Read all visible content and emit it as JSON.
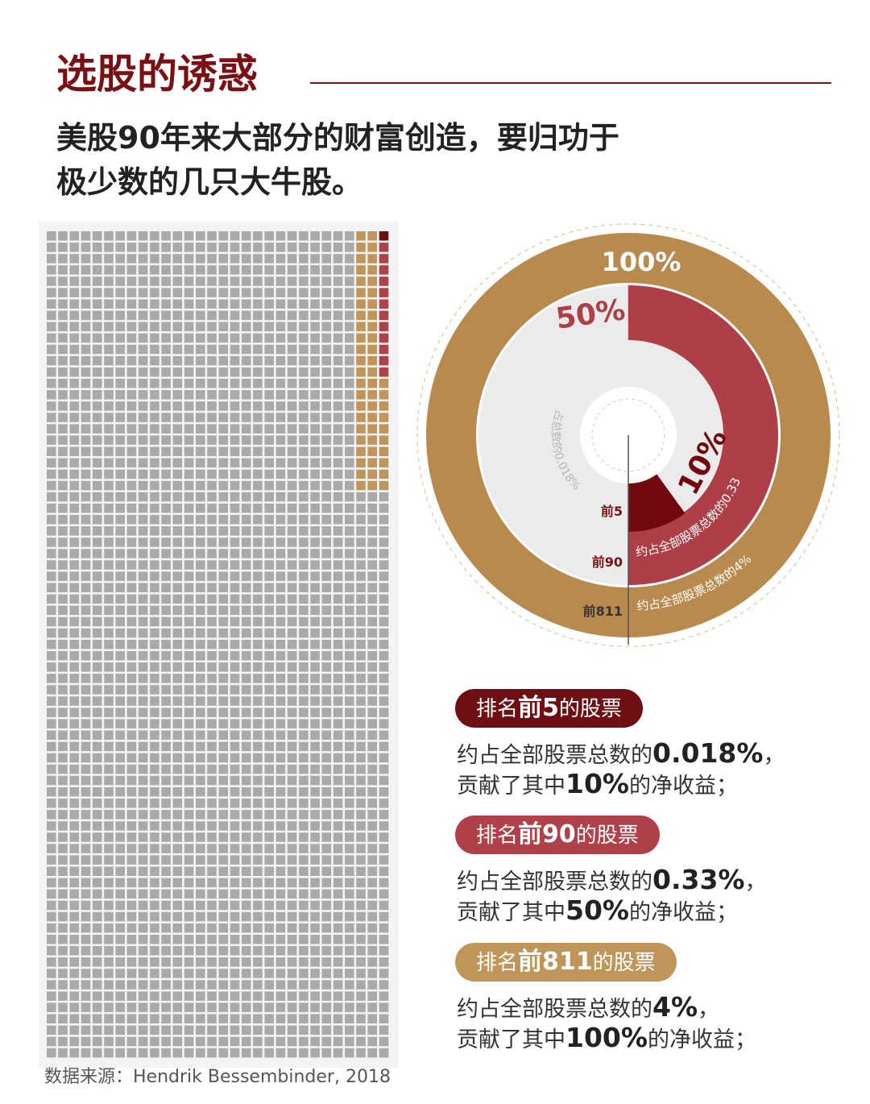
{
  "header": {
    "title": "选股的诱惑",
    "subtitle": [
      "美股90年来大部分的财富创造，要归功于",
      "极少数的几只大牛股。"
    ]
  },
  "rings": [
    {
      "rank": "前811",
      "value": 100,
      "label": "100%",
      "caption": "约占全部股票总数的4%",
      "color": "#b88a4e"
    },
    {
      "rank": "前90",
      "value": 50,
      "label": "50%",
      "caption": "约占全部股票总数的0.33%",
      "color": "#ae3f48"
    },
    {
      "rank": "前5",
      "value": 10,
      "label": "10%",
      "caption": "占总数的0.018%",
      "color": "#72090f"
    }
  ],
  "cards": [
    {
      "color": "#6e0f14",
      "badge": [
        "排名",
        "前5",
        "的股票"
      ],
      "share": [
        "约占全部股票总数的",
        "0.018%",
        "，"
      ],
      "contribution": [
        "贡献了其中",
        "10%",
        "的净收益；"
      ]
    },
    {
      "color": "#b0414a",
      "badge": [
        "排名",
        "前90",
        "的股票"
      ],
      "share": [
        "约占全部股票总数的",
        "0.33%",
        "，"
      ],
      "contribution": [
        "贡献了其中",
        "50%",
        "的净收益；"
      ]
    },
    {
      "color": "#c0955a",
      "badge": [
        "排名",
        "前811",
        "的股票"
      ],
      "share": [
        "约占全部股票总数的",
        "4%",
        "，"
      ],
      "contribution": [
        "贡献了其中",
        "100%",
        "的净收益；"
      ]
    }
  ],
  "source": "数据来源：Hendrik Bessembinder, 2018"
}
